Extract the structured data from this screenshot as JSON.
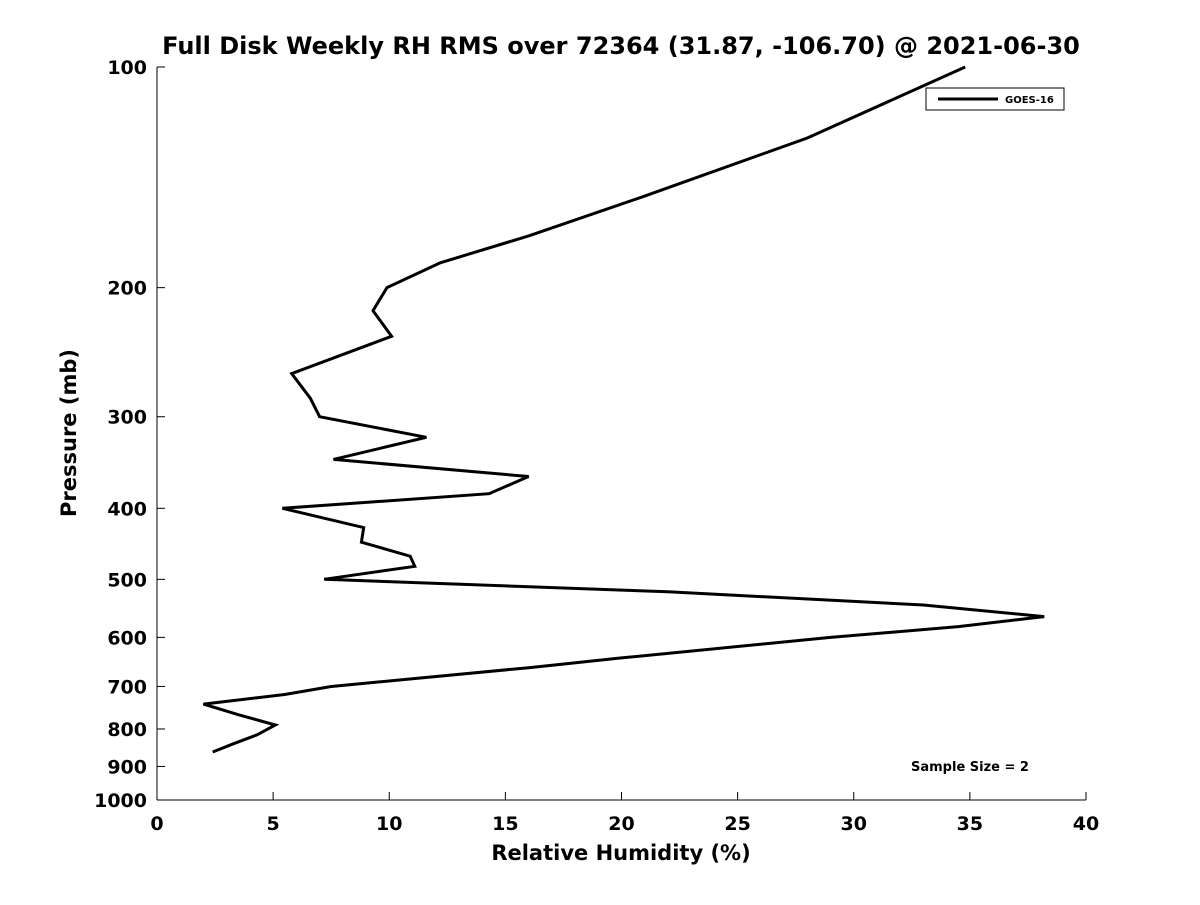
{
  "chart_data": {
    "type": "line",
    "title": "Full Disk Weekly RH RMS over 72364 (31.87, -106.70) @ 2021-06-30",
    "xlabel": "Relative Humidity (%)",
    "ylabel": "Pressure (mb)",
    "xlim": [
      0,
      40
    ],
    "ylim": [
      100,
      1000
    ],
    "y_scale": "log",
    "y_inverted": true,
    "x_ticks": [
      0,
      5,
      10,
      15,
      20,
      25,
      30,
      35,
      40
    ],
    "y_ticks": [
      100,
      200,
      300,
      400,
      500,
      600,
      700,
      800,
      900,
      1000
    ],
    "grid": false,
    "legend_position": "top-right",
    "series": [
      {
        "name": "GOES-16",
        "color": "#000000",
        "points": [
          [
            34.8,
            100
          ],
          [
            28.0,
            125
          ],
          [
            21.0,
            150
          ],
          [
            16.0,
            170
          ],
          [
            12.2,
            185
          ],
          [
            9.9,
            200
          ],
          [
            9.3,
            215
          ],
          [
            10.1,
            233
          ],
          [
            5.8,
            262
          ],
          [
            6.6,
            283
          ],
          [
            7.0,
            300
          ],
          [
            11.6,
            320
          ],
          [
            7.6,
            343
          ],
          [
            16.0,
            362
          ],
          [
            14.3,
            382
          ],
          [
            5.4,
            400
          ],
          [
            8.9,
            425
          ],
          [
            8.8,
            445
          ],
          [
            10.9,
            465
          ],
          [
            11.1,
            480
          ],
          [
            7.2,
            500
          ],
          [
            22.0,
            520
          ],
          [
            33.0,
            542
          ],
          [
            38.2,
            562
          ],
          [
            34.5,
            580
          ],
          [
            29.0,
            600
          ],
          [
            20.0,
            640
          ],
          [
            16.0,
            660
          ],
          [
            7.5,
            700
          ],
          [
            5.5,
            718
          ],
          [
            2.0,
            740
          ],
          [
            3.5,
            765
          ],
          [
            5.1,
            790
          ],
          [
            4.3,
            815
          ],
          [
            3.3,
            838
          ],
          [
            2.4,
            860
          ]
        ]
      }
    ],
    "annotation": "Sample Size = 2"
  }
}
